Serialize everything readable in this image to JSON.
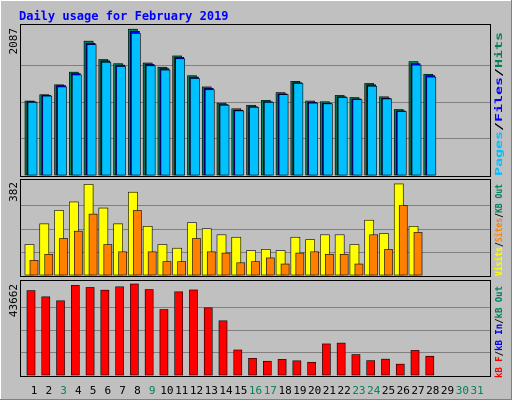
{
  "chart_data": {
    "type": "bar",
    "title": "Daily usage for February 2019",
    "days": [
      "1",
      "2",
      "3",
      "4",
      "5",
      "6",
      "7",
      "8",
      "9",
      "10",
      "11",
      "12",
      "13",
      "14",
      "15",
      "16",
      "17",
      "18",
      "19",
      "20",
      "21",
      "22",
      "23",
      "24",
      "25",
      "26",
      "27",
      "28",
      "29",
      "30",
      "31"
    ],
    "day_colors": [
      "#000000",
      "#000000",
      "#00805c",
      "#000000",
      "#000000",
      "#000000",
      "#000000",
      "#000000",
      "#00805c",
      "#000000",
      "#000000",
      "#000000",
      "#000000",
      "#000000",
      "#000000",
      "#00805c",
      "#00805c",
      "#000000",
      "#000000",
      "#000000",
      "#000000",
      "#000000",
      "#00805c",
      "#00805c",
      "#000000",
      "#000000",
      "#000000",
      "#000000",
      "#000000",
      "#00805c",
      "#00805c"
    ],
    "colors": {
      "hits": "#00805c",
      "files": "#0000ff",
      "pages": "#00c0ff",
      "visits": "#ffff00",
      "sites": "#ff8000",
      "kbin": "#0000ff",
      "kbout": "#00805c",
      "kbf": "#ff0000",
      "title": "#0000ff"
    },
    "panels": [
      {
        "key": "hits_files_pages",
        "max_label": "2087",
        "max": 2087,
        "legend": [
          {
            "text": "Pages",
            "color_key": "pages"
          },
          {
            "text": "/",
            "color_key": "sep"
          },
          {
            "text": "Files",
            "color_key": "files"
          },
          {
            "text": "/",
            "color_key": "sep"
          },
          {
            "text": "Hits",
            "color_key": "hits"
          }
        ],
        "series": [
          {
            "name": "Hits",
            "values": [
              1050,
              1140,
              1280,
              1460,
              1900,
              1640,
              1580,
              2070,
              1590,
              1530,
              1690,
              1410,
              1250,
              1020,
              940,
              990,
              1060,
              1170,
              1330,
              1050,
              1040,
              1130,
              1100,
              1300,
              1110,
              930,
              1610,
              1430,
              0,
              0,
              0
            ]
          },
          {
            "name": "Files",
            "values": [
              1040,
              1130,
              1270,
              1440,
              1870,
              1620,
              1560,
              2040,
              1570,
              1510,
              1670,
              1390,
              1230,
              1000,
              920,
              970,
              1040,
              1150,
              1310,
              1030,
              1020,
              1110,
              1080,
              1280,
              1090,
              910,
              1580,
              1410,
              0,
              0,
              0
            ]
          },
          {
            "name": "Pages",
            "values": [
              1030,
              1120,
              1250,
              1420,
              1850,
              1600,
              1540,
              2010,
              1550,
              1490,
              1650,
              1370,
              1210,
              990,
              910,
              960,
              1030,
              1140,
              1300,
              1020,
              1010,
              1100,
              1070,
              1260,
              1080,
              900,
              1560,
              1390,
              0,
              0,
              0
            ]
          }
        ]
      },
      {
        "key": "visits_sites",
        "max_label": "382",
        "max": 382,
        "legend": [
          {
            "text": "Visits",
            "color_key": "visits"
          },
          {
            "text": "/",
            "color_key": "sep"
          },
          {
            "text": "Sites",
            "color_key": "sites"
          },
          {
            "text": "/",
            "color_key": "sep"
          },
          {
            "text": "KB Out",
            "color_key": "kbout"
          }
        ],
        "series": [
          {
            "name": "Visits",
            "values": [
              125,
              210,
              265,
              300,
              372,
              275,
              210,
              340,
              200,
              125,
              110,
              215,
              190,
              165,
              155,
              100,
              105,
              100,
              155,
              145,
              165,
              165,
              125,
              225,
              170,
              374,
              200,
              0,
              0,
              0,
              0
            ]
          },
          {
            "name": "Sites",
            "values": [
              60,
              85,
              150,
              180,
              250,
              125,
              95,
              265,
              95,
              55,
              55,
              150,
              95,
              90,
              50,
              55,
              70,
              45,
              90,
              95,
              85,
              85,
              45,
              165,
              105,
              285,
              175,
              0,
              0,
              0,
              0
            ]
          }
        ]
      },
      {
        "key": "kbf",
        "max_label": "43662",
        "max": 43662,
        "legend": [
          {
            "text": "kB F",
            "color_key": "kbf"
          },
          {
            "text": "/",
            "color_key": "sep"
          },
          {
            "text": "kB In",
            "color_key": "kbin"
          },
          {
            "text": "/",
            "color_key": "sep"
          },
          {
            "text": "kB Out",
            "color_key": "kbout"
          }
        ],
        "series": [
          {
            "name": "kB F",
            "values": [
              40500,
              37500,
              35600,
              43000,
              42000,
              40700,
              42300,
              43662,
              41000,
              31400,
              39900,
              40800,
              32200,
              26000,
              12000,
              8000,
              6600,
              7500,
              6800,
              6100,
              14900,
              15300,
              9800,
              6900,
              7600,
              5200,
              11800,
              9000,
              0,
              0,
              0
            ]
          }
        ]
      }
    ],
    "axis": {
      "ylim_hits": [
        0,
        2087
      ],
      "ylim_visits": [
        0,
        382
      ],
      "ylim_kb": [
        0,
        43662
      ]
    },
    "grid": true,
    "legend_placement": "right"
  }
}
